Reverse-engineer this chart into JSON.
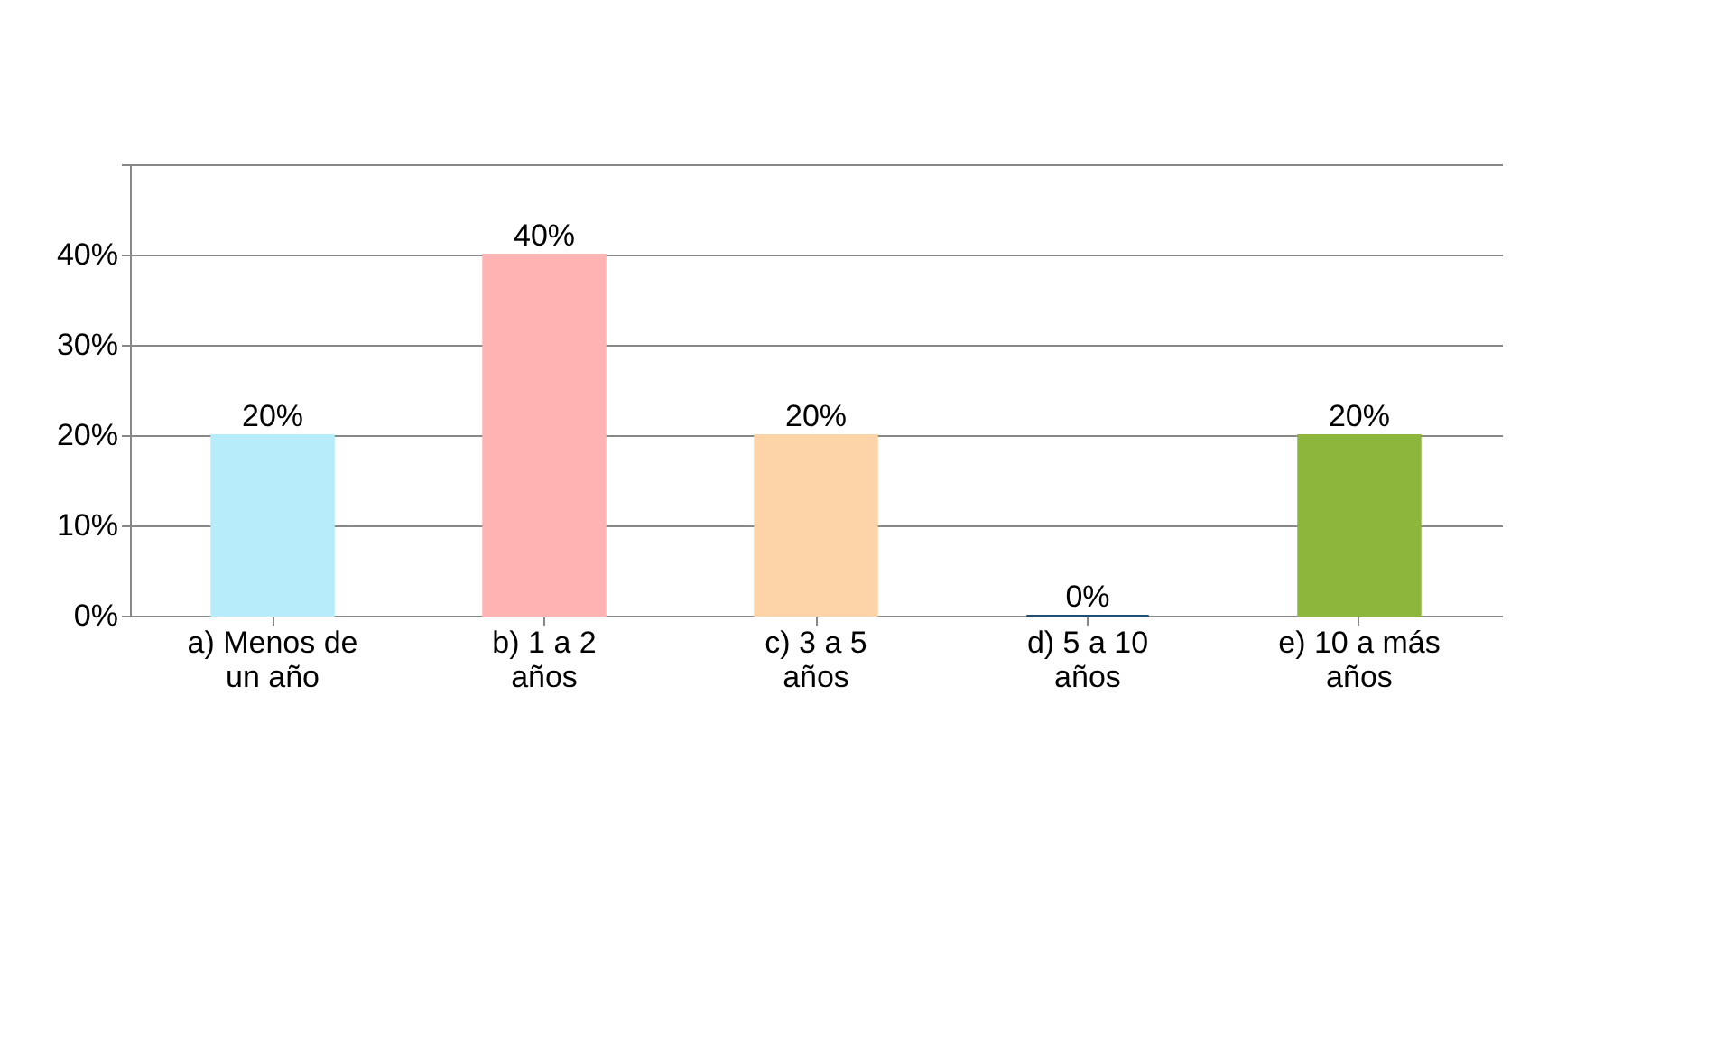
{
  "chart_data": {
    "type": "bar",
    "categories": [
      "a) Menos de un año",
      "b) 1 a 2 años",
      "c) 3 a 5 años",
      "d) 5 a 10 años",
      "e) 10 a más años"
    ],
    "values": [
      20,
      40,
      20,
      0,
      20
    ],
    "colors": [
      "#b7ecfa",
      "#ffb3b3",
      "#fdd3a8",
      "#1f4e79",
      "#8db63c"
    ],
    "value_labels": [
      "20%",
      "40%",
      "20%",
      "0%",
      "20%"
    ],
    "ylim": [
      0,
      50
    ],
    "yticks": [
      {
        "value": 0,
        "label": "0%"
      },
      {
        "value": 10,
        "label": "10%"
      },
      {
        "value": 20,
        "label": "20%"
      },
      {
        "value": 30,
        "label": "30%"
      },
      {
        "value": 40,
        "label": "40%"
      },
      {
        "value": 50,
        "label": null
      }
    ],
    "grid": true
  }
}
